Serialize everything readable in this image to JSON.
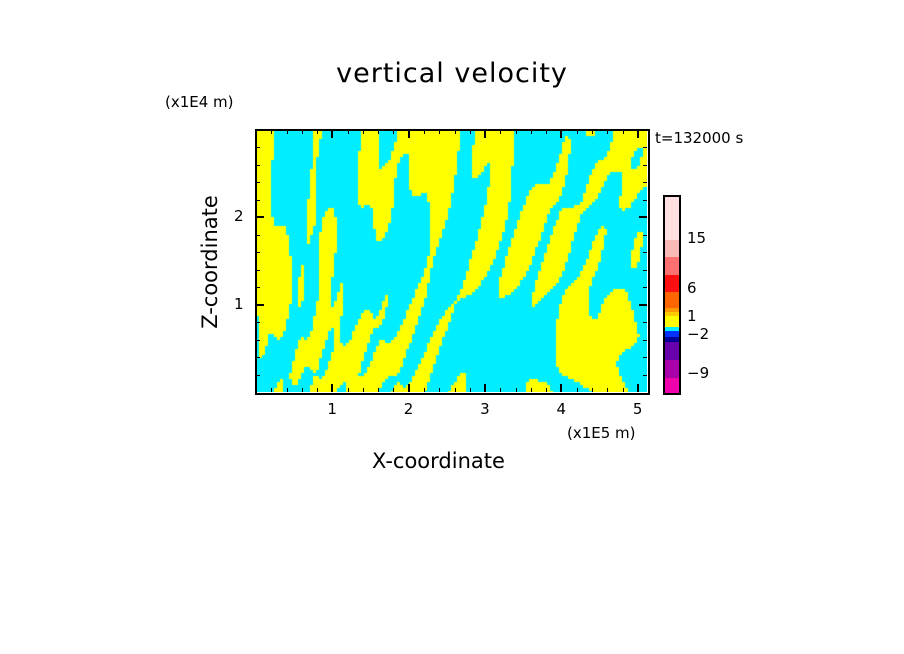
{
  "chart_data": {
    "type": "heatmap",
    "title": "vertical velocity",
    "xlabel": "X-coordinate",
    "ylabel": "Z-coordinate",
    "x_unit": "(x1E5 m)",
    "y_unit": "(x1E4 m)",
    "time_label": "t=132000 s",
    "xlim": [
      0,
      5.12
    ],
    "ylim": [
      0,
      3.0
    ],
    "xticks": [
      1,
      2,
      3,
      4,
      5
    ],
    "yticks": [
      1,
      2
    ],
    "dominant_values": "field mostly between -2 and 1 (cyan and yellow bands)",
    "colorbar": {
      "tick_labels": [
        "15",
        "6",
        "1",
        "−2",
        "−9"
      ],
      "tick_values": [
        15,
        6,
        1,
        -2,
        -9
      ],
      "colors": [
        "#ffe0e0",
        "#ffb8b8",
        "#ff7070",
        "#ff1010",
        "#ff6600",
        "#ff9900",
        "#ffcc00",
        "#ffff00",
        "#ffff00",
        "#00eeff",
        "#0033ff",
        "#000099",
        "#6600aa",
        "#aa00aa",
        "#ee00aa"
      ]
    },
    "field_colors": {
      "positive": "#ffff00",
      "negative": "#00eeff"
    }
  }
}
